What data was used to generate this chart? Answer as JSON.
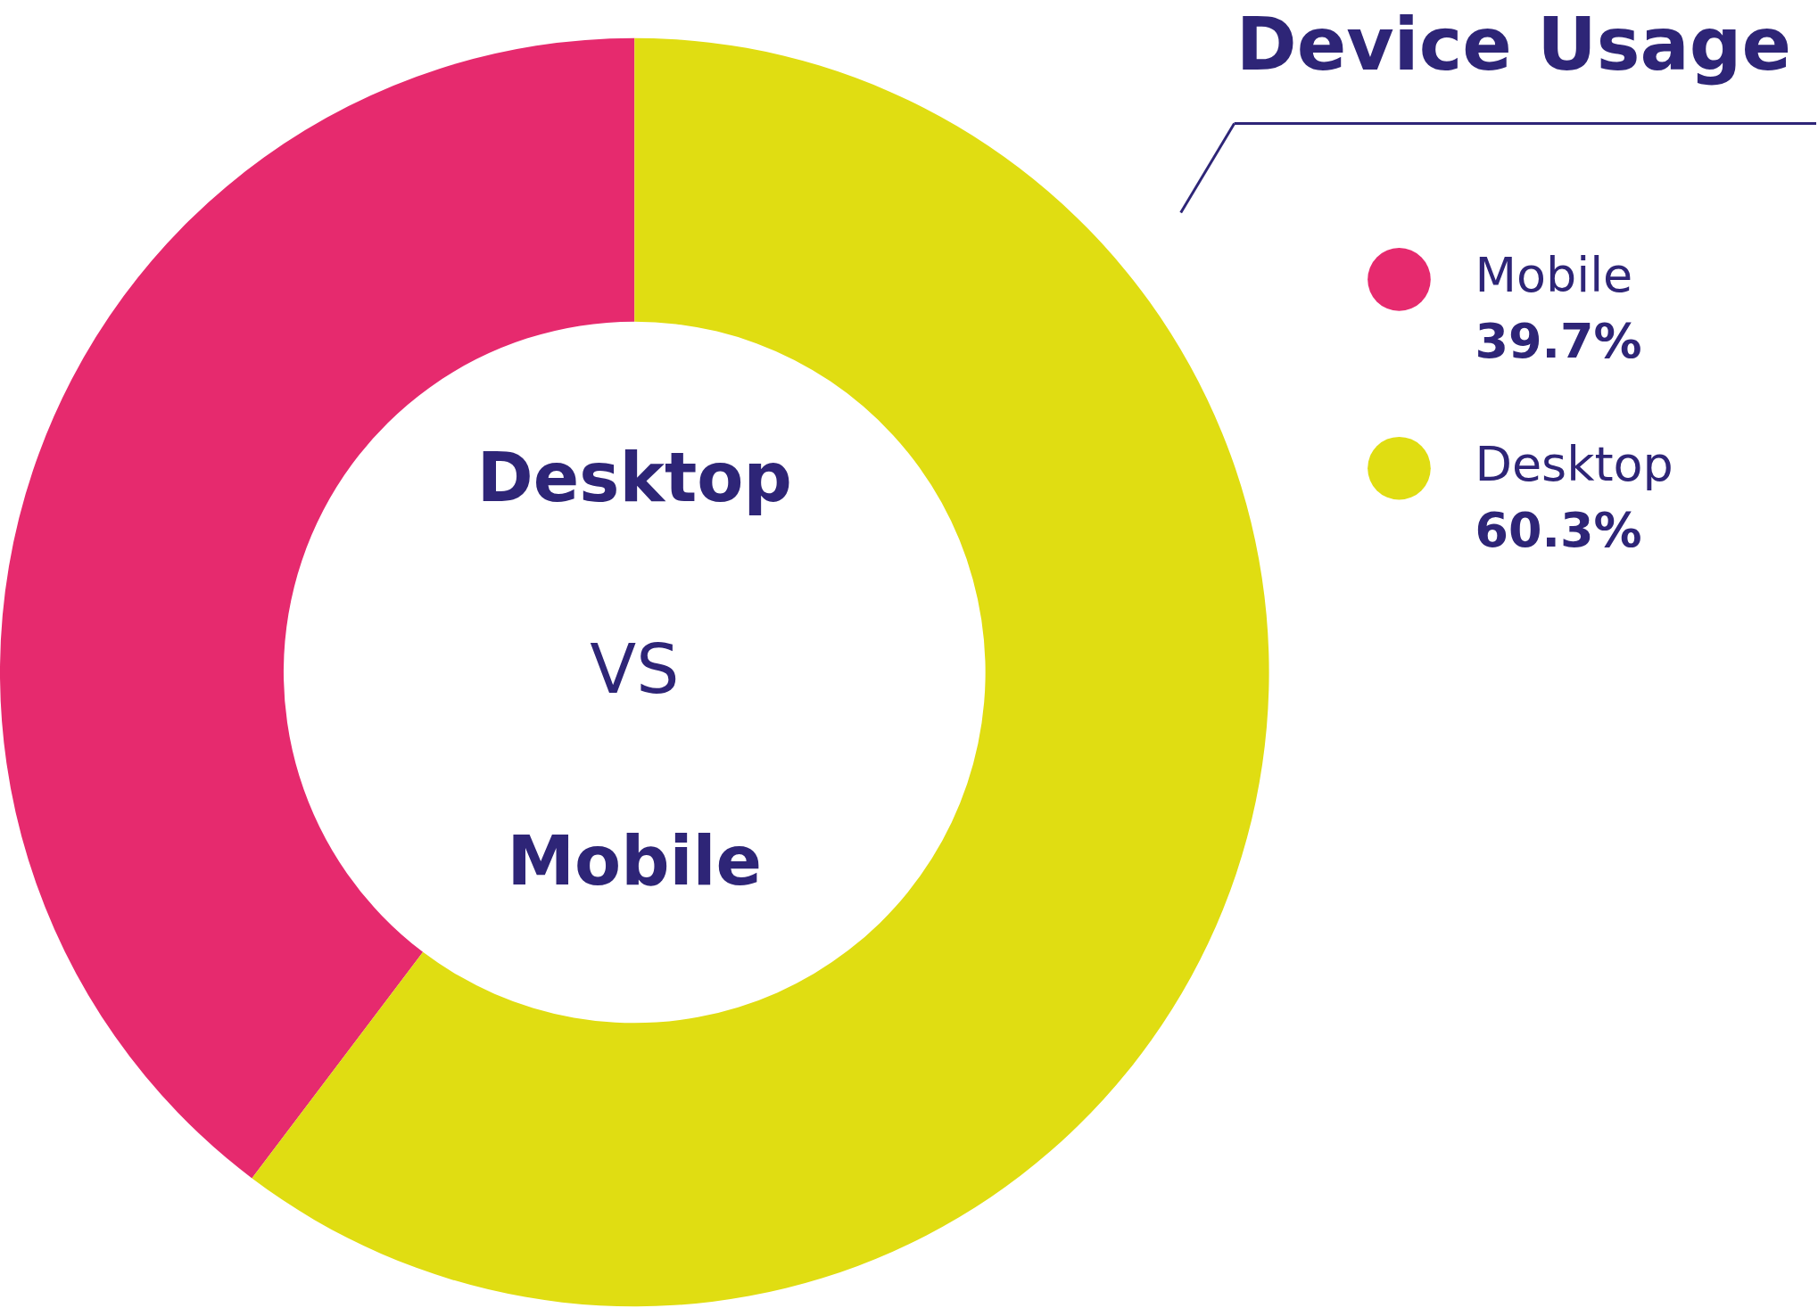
{
  "chart_data": {
    "type": "donut",
    "title": "Device Usage",
    "categories": [
      "Mobile",
      "Desktop"
    ],
    "values": [
      39.7,
      60.3
    ],
    "colors": [
      "#e62a6e",
      "#e0dd12"
    ],
    "value_labels": [
      "39.7%",
      "60.3%"
    ],
    "annotations": [
      "Desktop",
      "VS",
      "Mobile"
    ],
    "legend": "top right"
  }
}
